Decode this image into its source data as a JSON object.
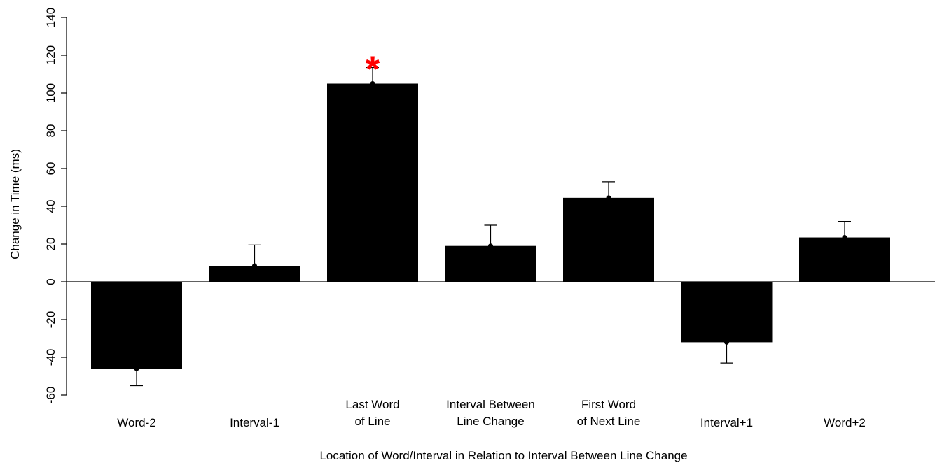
{
  "chart_data": {
    "type": "bar",
    "categories": [
      [
        "Word-2"
      ],
      [
        "Interval-1"
      ],
      [
        "Last Word",
        "of Line"
      ],
      [
        "Interval Between",
        "Line Change"
      ],
      [
        "First Word",
        "of Next Line"
      ],
      [
        "Interval+1"
      ],
      [
        "Word+2"
      ]
    ],
    "values": [
      -46,
      8.5,
      105,
      19,
      44.5,
      -32,
      23.5
    ],
    "errors": [
      9,
      11,
      8.5,
      11,
      8.5,
      11,
      8.5
    ],
    "error_direction": "away_from_zero",
    "significant": [
      "",
      "",
      "*",
      "",
      "",
      "",
      ""
    ],
    "xlabel": "Location of Word/Interval in Relation to Interval Between Line Change",
    "ylabel": "Change in Time (ms)",
    "ylim": [
      -60,
      140
    ],
    "yticks": [
      -60,
      -40,
      -20,
      0,
      20,
      40,
      60,
      80,
      100,
      120,
      140
    ],
    "grid": false,
    "colors": {
      "bar": "#000000",
      "marker": "#ff0000"
    }
  }
}
